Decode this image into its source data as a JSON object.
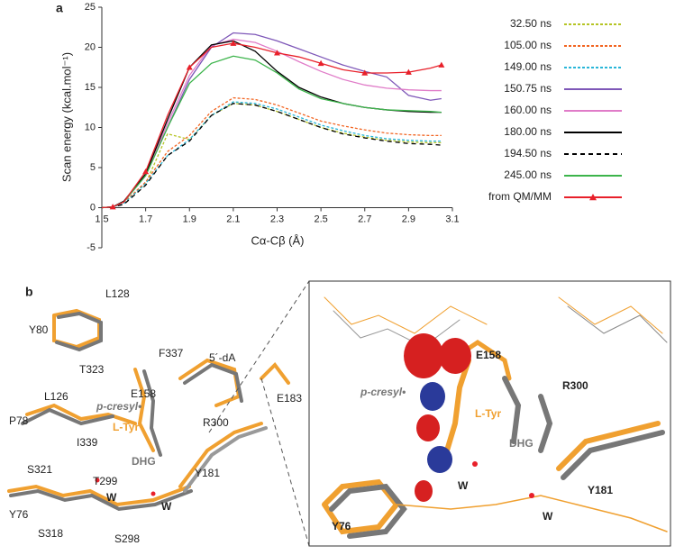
{
  "chart_data": {
    "type": "line",
    "panel_label": "a",
    "y_label": "Scan energy (kcal.mol⁻¹)",
    "x_label": "Cα-Cβ (Å)",
    "x": [
      1.5,
      1.55,
      1.6,
      1.7,
      1.8,
      1.9,
      2.0,
      2.1,
      2.2,
      2.3,
      2.4,
      2.5,
      2.6,
      2.7,
      2.8,
      2.9,
      3.0,
      3.05
    ],
    "xlim": [
      1.5,
      3.1
    ],
    "xticks": [
      1.5,
      1.7,
      1.9,
      2.1,
      2.3,
      2.5,
      2.7,
      2.9,
      3.1
    ],
    "ylim": [
      -5,
      25
    ],
    "yticks": [
      -5,
      0,
      5,
      10,
      15,
      20,
      25
    ],
    "series": [
      {
        "name": "32.50 ns",
        "color": "#b5c424",
        "style": "dashed",
        "values": [
          0,
          0.1,
          0.6,
          3,
          9.2,
          8.5,
          11.5,
          13,
          12.8,
          12,
          11,
          10,
          9.3,
          8.8,
          8.4,
          8.2,
          8.1,
          8.1
        ]
      },
      {
        "name": "105.00 ns",
        "color": "#f26522",
        "style": "dashed",
        "values": [
          0,
          0.1,
          0.6,
          3.2,
          7,
          9,
          12,
          13.7,
          13.5,
          12.8,
          11.8,
          10.8,
          10.2,
          9.7,
          9.3,
          9.1,
          9,
          9
        ]
      },
      {
        "name": "149.00 ns",
        "color": "#29b6d8",
        "style": "dashed",
        "values": [
          0,
          0.1,
          0.5,
          3,
          6.5,
          8.5,
          11.5,
          13.2,
          13,
          12.3,
          11.3,
          10.3,
          9.6,
          9,
          8.6,
          8.4,
          8.3,
          8.3
        ]
      },
      {
        "name": "150.75 ns",
        "color": "#7e57b8",
        "style": "solid",
        "values": [
          0,
          0.1,
          0.7,
          4,
          10,
          16,
          20,
          21.8,
          21.6,
          20.8,
          19.8,
          18.8,
          17.8,
          17,
          16.3,
          14,
          13.4,
          13.6
        ]
      },
      {
        "name": "160.00 ns",
        "color": "#e07cc8",
        "style": "solid",
        "values": [
          0,
          0.1,
          0.7,
          4,
          10.5,
          16.5,
          20.2,
          21,
          20.6,
          19.5,
          18.2,
          17,
          16,
          15.3,
          14.9,
          14.7,
          14.6,
          14.6
        ]
      },
      {
        "name": "180.00 ns",
        "color": "#000000",
        "style": "solid",
        "values": [
          0,
          0.1,
          0.8,
          4.2,
          11,
          17.5,
          20.3,
          20.8,
          19.5,
          17,
          15,
          13.8,
          13,
          12.5,
          12.2,
          12,
          11.9,
          11.9
        ]
      },
      {
        "name": "194.50 ns",
        "color": "#000000",
        "style": "dashed",
        "values": [
          0,
          0.1,
          0.4,
          2.8,
          6.5,
          8.3,
          11.5,
          13,
          12.8,
          12,
          11,
          10,
          9.2,
          8.7,
          8.3,
          8,
          7.9,
          7.8
        ]
      },
      {
        "name": "245.00 ns",
        "color": "#3cb44b",
        "style": "solid",
        "values": [
          0,
          0.1,
          0.7,
          4,
          10,
          15.5,
          18,
          18.9,
          18.4,
          16.8,
          14.8,
          13.6,
          13,
          12.5,
          12.2,
          12.1,
          12,
          11.9
        ]
      },
      {
        "name": "from QM/MM",
        "color": "#e8202a",
        "style": "solid",
        "marker": "triangle",
        "values": [
          0,
          0.1,
          0.7,
          4.5,
          11.5,
          17.5,
          20,
          20.5,
          20,
          19.3,
          18.8,
          18,
          17.2,
          16.8,
          16.8,
          16.9,
          17.4,
          17.8
        ]
      }
    ]
  },
  "panel_b": {
    "label": "b",
    "left_labels": [
      "Y80",
      "L128",
      "T323",
      "F337",
      "5´-dA",
      "L126",
      "p-cresyl•",
      "E158",
      "P78",
      "L-Tyr",
      "I339",
      "R300",
      "E183",
      "DHG",
      "S321",
      "Y181",
      "T299",
      "W",
      "W",
      "Y76",
      "S318",
      "S298"
    ],
    "right_labels": [
      "E158",
      "R300",
      "p-cresyl•",
      "L-Tyr",
      "DHG",
      "W",
      "Y181",
      "W",
      "Y76"
    ]
  }
}
